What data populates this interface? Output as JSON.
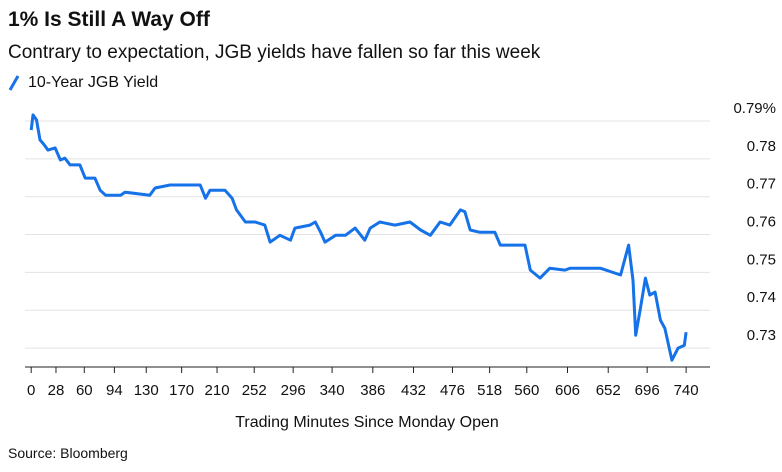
{
  "chart_data": {
    "type": "line",
    "title": "1% Is Still A Way Off",
    "subtitle": "Contrary to expectation, JGB yields have fallen so far this week",
    "x_label": "Trading Minutes Since Monday Open",
    "source": "Source: Bloomberg",
    "series": [
      {
        "name": "10-Year JGB Yield",
        "color": "#1672e8",
        "x": [
          0,
          2,
          6,
          10,
          15,
          19,
          27,
          33,
          38,
          44,
          55,
          61,
          72,
          78,
          84,
          101,
          106,
          134,
          140,
          157,
          191,
          197,
          202,
          219,
          227,
          232,
          242,
          253,
          264,
          270,
          281,
          293,
          298,
          315,
          321,
          327,
          332,
          344,
          355,
          366,
          377,
          383,
          394,
          411,
          428,
          440,
          451,
          462,
          473,
          485,
          490,
          496,
          507,
          524,
          530,
          558,
          564,
          575,
          586,
          603,
          609,
          643,
          666,
          675,
          680,
          683,
          688,
          694,
          699,
          705,
          711,
          716,
          724,
          731,
          738,
          740
        ],
        "values": [
          0.7876,
          0.7916,
          0.7903,
          0.785,
          0.7836,
          0.7823,
          0.7829,
          0.7797,
          0.7802,
          0.7784,
          0.7784,
          0.7749,
          0.7749,
          0.7717,
          0.7704,
          0.7704,
          0.7712,
          0.7704,
          0.7723,
          0.7731,
          0.7731,
          0.7696,
          0.7717,
          0.7717,
          0.7696,
          0.7665,
          0.7633,
          0.7633,
          0.7625,
          0.758,
          0.7598,
          0.7585,
          0.7617,
          0.7625,
          0.7633,
          0.7606,
          0.758,
          0.7598,
          0.7598,
          0.7617,
          0.7585,
          0.7617,
          0.7633,
          0.7625,
          0.7633,
          0.7612,
          0.7598,
          0.7633,
          0.7625,
          0.7665,
          0.766,
          0.7612,
          0.7606,
          0.7606,
          0.7572,
          0.7572,
          0.7506,
          0.7485,
          0.7511,
          0.7506,
          0.7511,
          0.7511,
          0.7493,
          0.7572,
          0.7479,
          0.7334,
          0.74,
          0.7485,
          0.744,
          0.7448,
          0.7374,
          0.7352,
          0.7268,
          0.73,
          0.7307,
          0.7342
        ]
      }
    ],
    "xlim": [
      -7,
      767
    ],
    "xticks": [
      0,
      28,
      60,
      94,
      130,
      170,
      210,
      252,
      296,
      340,
      386,
      432,
      476,
      518,
      560,
      606,
      652,
      696,
      740
    ],
    "ylim": [
      0.725,
      0.79
    ],
    "yticks": [
      0.73,
      0.74,
      0.75,
      0.76,
      0.77,
      0.78,
      {
        "value": 0.79,
        "label": "0.79%"
      }
    ],
    "grid": true
  }
}
